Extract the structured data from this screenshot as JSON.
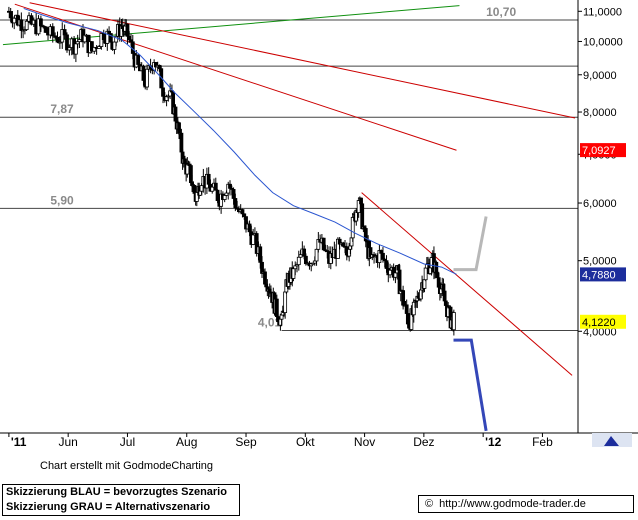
{
  "chart_data": {
    "type": "candlestick",
    "x_axis": {
      "ticks": [
        {
          "label": "'11",
          "pos": 0.0
        },
        {
          "label": "Jun",
          "pos": 1.0
        },
        {
          "label": "Jul",
          "pos": 2.0
        },
        {
          "label": "Aug",
          "pos": 3.0
        },
        {
          "label": "Sep",
          "pos": 4.0
        },
        {
          "label": "Okt",
          "pos": 5.0
        },
        {
          "label": "Nov",
          "pos": 6.0
        },
        {
          "label": "Dez",
          "pos": 7.0
        },
        {
          "label": "'12",
          "pos": 8.0
        },
        {
          "label": "Feb",
          "pos": 9.0
        }
      ],
      "range": [
        -0.15,
        9.6
      ]
    },
    "y_axis": {
      "scale": "log",
      "range": [
        2.9,
        11.4
      ],
      "ticks": [
        "4,0000",
        "5,0000",
        "6,0000",
        "7,0000",
        "8,0000",
        "9,0000",
        "10,0000",
        "11,0000"
      ],
      "tick_values": [
        4,
        5,
        6,
        7,
        8,
        9,
        10,
        11
      ]
    },
    "horizontal_levels": [
      {
        "value": 10.7,
        "label": "10,70"
      },
      {
        "value": 9.25,
        "label": ""
      },
      {
        "value": 7.87,
        "label": "7,87"
      },
      {
        "value": 5.9,
        "label": "5,90"
      },
      {
        "value": 4.01,
        "label": "4,01"
      }
    ],
    "price_path": [
      [
        0.0,
        11.0
      ],
      [
        0.15,
        10.7
      ],
      [
        0.3,
        10.55
      ],
      [
        0.5,
        10.5
      ],
      [
        0.7,
        10.2
      ],
      [
        0.9,
        10.1
      ],
      [
        1.1,
        9.9
      ],
      [
        1.25,
        10.2
      ],
      [
        1.4,
        9.7
      ],
      [
        1.6,
        10.3
      ],
      [
        1.75,
        10.0
      ],
      [
        1.9,
        10.5
      ],
      [
        2.0,
        10.2
      ],
      [
        2.15,
        9.3
      ],
      [
        2.3,
        8.8
      ],
      [
        2.45,
        9.5
      ],
      [
        2.6,
        8.6
      ],
      [
        2.75,
        8.3
      ],
      [
        2.85,
        7.6
      ],
      [
        2.95,
        6.8
      ],
      [
        3.05,
        6.6
      ],
      [
        3.15,
        6.1
      ],
      [
        3.25,
        6.5
      ],
      [
        3.4,
        6.3
      ],
      [
        3.55,
        6.1
      ],
      [
        3.7,
        6.4
      ],
      [
        3.85,
        5.9
      ],
      [
        4.0,
        5.6
      ],
      [
        4.15,
        5.3
      ],
      [
        4.3,
        4.8
      ],
      [
        4.4,
        4.6
      ],
      [
        4.5,
        4.3
      ],
      [
        4.6,
        4.1
      ],
      [
        4.7,
        4.7
      ],
      [
        4.8,
        4.8
      ],
      [
        4.95,
        5.1
      ],
      [
        5.1,
        5.0
      ],
      [
        5.25,
        5.3
      ],
      [
        5.4,
        5.0
      ],
      [
        5.55,
        5.2
      ],
      [
        5.7,
        5.1
      ],
      [
        5.8,
        5.6
      ],
      [
        5.9,
        6.1
      ],
      [
        6.0,
        5.4
      ],
      [
        6.1,
        5.0
      ],
      [
        6.25,
        5.1
      ],
      [
        6.4,
        4.9
      ],
      [
        6.55,
        4.8
      ],
      [
        6.65,
        4.4
      ],
      [
        6.75,
        4.1
      ],
      [
        6.85,
        4.3
      ],
      [
        6.95,
        4.6
      ],
      [
        7.05,
        4.9
      ],
      [
        7.15,
        5.0
      ],
      [
        7.25,
        4.7
      ],
      [
        7.35,
        4.4
      ],
      [
        7.45,
        4.15
      ],
      [
        7.52,
        4.12
      ]
    ],
    "moving_average_blue": [
      [
        0.25,
        11.1
      ],
      [
        0.6,
        10.85
      ],
      [
        1.0,
        10.6
      ],
      [
        1.5,
        10.35
      ],
      [
        1.9,
        10.05
      ],
      [
        2.2,
        9.6
      ],
      [
        2.5,
        9.05
      ],
      [
        2.8,
        8.5
      ],
      [
        3.1,
        8.05
      ],
      [
        3.45,
        7.55
      ],
      [
        3.8,
        7.05
      ],
      [
        4.15,
        6.55
      ],
      [
        4.45,
        6.2
      ],
      [
        4.8,
        5.95
      ],
      [
        5.15,
        5.8
      ],
      [
        5.5,
        5.65
      ],
      [
        5.85,
        5.45
      ],
      [
        6.2,
        5.28
      ],
      [
        6.6,
        5.12
      ],
      [
        7.0,
        4.95
      ],
      [
        7.3,
        4.9
      ],
      [
        7.55,
        4.79
      ]
    ],
    "trend_lines": [
      {
        "color": "#109010",
        "from": [
          -0.1,
          9.9
        ],
        "to": [
          7.6,
          11.2
        ]
      },
      {
        "color": "#cc0000",
        "from": [
          0.1,
          11.25
        ],
        "to": [
          7.55,
          7.09
        ]
      },
      {
        "color": "#cc0000",
        "from": [
          0.35,
          11.3
        ],
        "to": [
          9.55,
          7.85
        ]
      },
      {
        "color": "#cc0000",
        "from": [
          5.95,
          6.2
        ],
        "to": [
          9.5,
          3.48
        ]
      }
    ],
    "scenario_blue": [
      [
        7.5,
        3.89
      ],
      [
        7.8,
        3.89
      ],
      [
        8.05,
        2.92
      ]
    ],
    "scenario_grey": [
      [
        7.5,
        4.86
      ],
      [
        7.88,
        4.86
      ],
      [
        8.05,
        5.75
      ]
    ],
    "price_labels": [
      {
        "value": 7.0927,
        "label": "7,0927",
        "bg": "#ff0000",
        "fg": "#ffffff"
      },
      {
        "value": 4.788,
        "label": "4,7880",
        "bg": "#1c2d9c",
        "fg": "#ffffff"
      },
      {
        "value": 4.122,
        "label": "4,1220",
        "bg": "#ffff00",
        "fg": "#000000"
      }
    ]
  },
  "credit": "Chart erstellt mit GodmodeCharting",
  "legend": {
    "line1": "Skizzierung BLAU = bevorzugtes Szenario",
    "line2": "Skizzierung GRAU = Alternativszenario"
  },
  "url": {
    "copyright": "©",
    "text": "http://www.godmode-trader.de"
  },
  "colors": {
    "blue_scenario": "#3447b8",
    "grey_scenario": "#b8b8b8",
    "ma": "#2a55d0"
  }
}
